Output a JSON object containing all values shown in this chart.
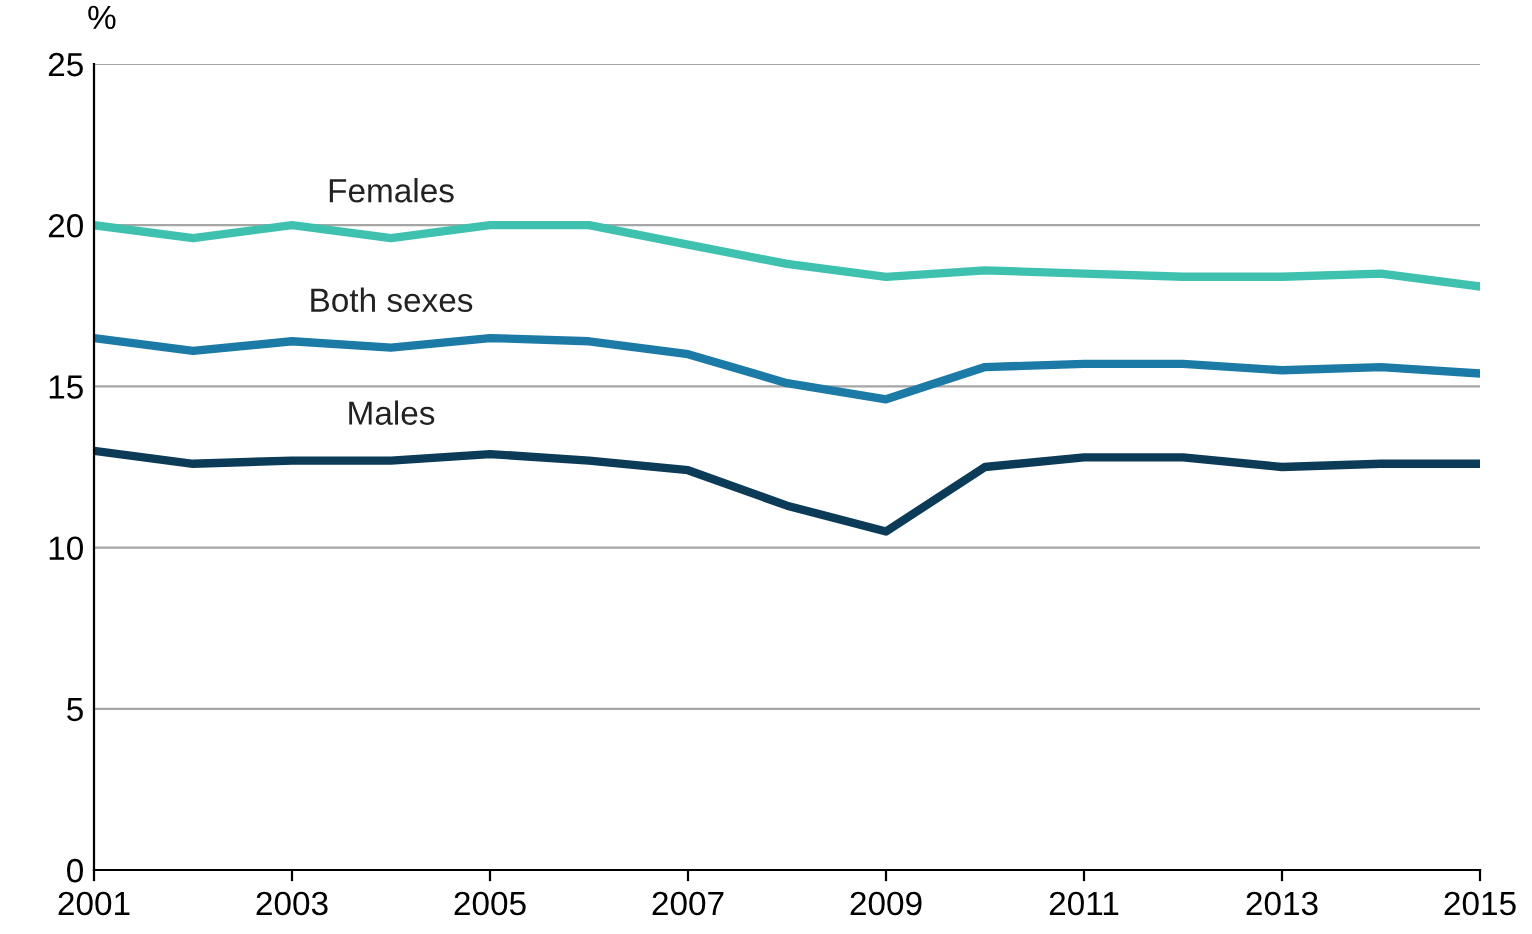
{
  "chart_data": {
    "type": "line",
    "ylabel": "%",
    "x": [
      2001,
      2002,
      2003,
      2004,
      2005,
      2006,
      2007,
      2008,
      2009,
      2010,
      2011,
      2012,
      2013,
      2014,
      2015
    ],
    "series": [
      {
        "name": "Females",
        "color": "#3fc1b0",
        "values": [
          20.0,
          19.6,
          20.0,
          19.6,
          20.0,
          20.0,
          19.4,
          18.8,
          18.4,
          18.6,
          18.5,
          18.4,
          18.4,
          18.5,
          18.1
        ]
      },
      {
        "name": "Both sexes",
        "color": "#1b7aa6",
        "values": [
          16.5,
          16.1,
          16.4,
          16.2,
          16.5,
          16.4,
          16.0,
          15.1,
          14.6,
          15.6,
          15.7,
          15.7,
          15.5,
          15.6,
          15.4
        ]
      },
      {
        "name": "Males",
        "color": "#0c3b58",
        "values": [
          13.0,
          12.6,
          12.7,
          12.7,
          12.9,
          12.7,
          12.4,
          11.3,
          10.5,
          12.5,
          12.8,
          12.8,
          12.5,
          12.6,
          12.6
        ]
      }
    ],
    "xlim": [
      2001,
      2015
    ],
    "xticks": [
      2001,
      2003,
      2005,
      2007,
      2009,
      2011,
      2013,
      2015
    ],
    "ylim": [
      0,
      25
    ],
    "yticks": [
      0,
      5,
      10,
      15,
      20,
      25
    ],
    "grid": "y",
    "legend": false,
    "marker": "none",
    "line_style": "solid"
  }
}
